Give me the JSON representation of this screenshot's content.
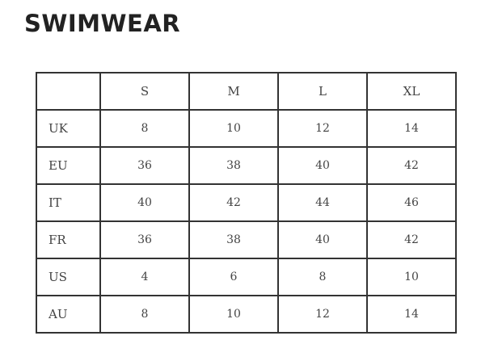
{
  "title": "SWIMWEAR",
  "table": {
    "headers": [
      "",
      "S",
      "M",
      "L",
      "XL"
    ],
    "rows": [
      {
        "label": "UK",
        "values": [
          "8",
          "10",
          "12",
          "14"
        ]
      },
      {
        "label": "EU",
        "values": [
          "36",
          "38",
          "40",
          "42"
        ]
      },
      {
        "label": "IT",
        "values": [
          "40",
          "42",
          "44",
          "46"
        ]
      },
      {
        "label": "FR",
        "values": [
          "36",
          "38",
          "40",
          "42"
        ]
      },
      {
        "label": "US",
        "values": [
          "4",
          "6",
          "8",
          "10"
        ]
      },
      {
        "label": "AU",
        "values": [
          "8",
          "10",
          "12",
          "14"
        ]
      }
    ]
  }
}
